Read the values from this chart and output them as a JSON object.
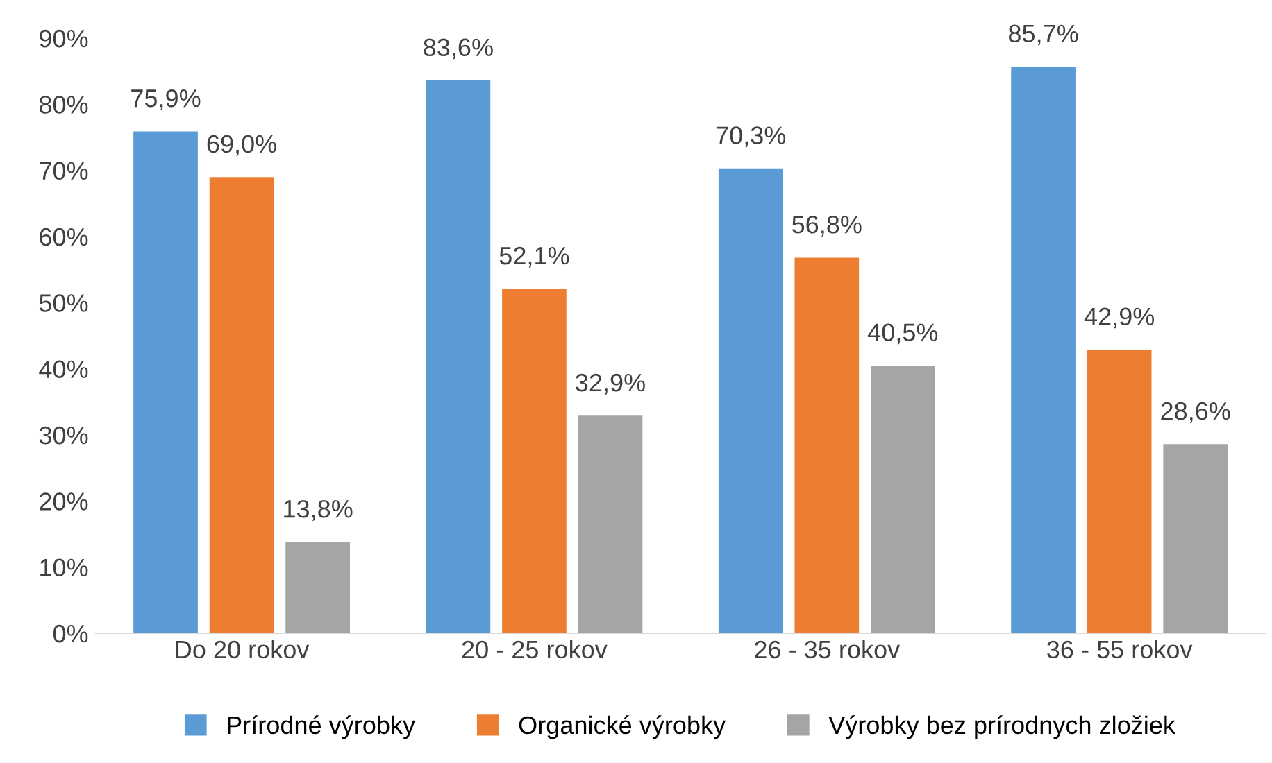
{
  "chart_data": {
    "type": "bar",
    "categories": [
      "Do 20 rokov",
      "20 - 25 rokov",
      "26 - 35 rokov",
      "36 - 55 rokov"
    ],
    "series": [
      {
        "name": "Prírodné výrobky",
        "color": "#5b9bd5",
        "values": [
          75.9,
          83.6,
          70.3,
          85.7
        ],
        "value_labels": [
          "75,9%",
          "83,6%",
          "70,3%",
          "85,7%"
        ]
      },
      {
        "name": "Organické výrobky",
        "color": "#ed7d31",
        "values": [
          69.0,
          52.1,
          56.8,
          42.9
        ],
        "value_labels": [
          "69,0%",
          "52,1%",
          "56,8%",
          "42,9%"
        ]
      },
      {
        "name": "Výrobky bez prírodnych zložiek",
        "color": "#a5a5a5",
        "values": [
          13.8,
          32.9,
          40.5,
          28.6
        ],
        "value_labels": [
          "13,8%",
          "32,9%",
          "40,5%",
          "28,6%"
        ]
      }
    ],
    "ylim": [
      0,
      90
    ],
    "yticks": [
      {
        "value": 0,
        "label": "0%"
      },
      {
        "value": 10,
        "label": "10%"
      },
      {
        "value": 20,
        "label": "20%"
      },
      {
        "value": 30,
        "label": "30%"
      },
      {
        "value": 40,
        "label": "40%"
      },
      {
        "value": 50,
        "label": "50%"
      },
      {
        "value": 60,
        "label": "60%"
      },
      {
        "value": 70,
        "label": "70%"
      },
      {
        "value": 80,
        "label": "80%"
      },
      {
        "value": 90,
        "label": "90%"
      }
    ],
    "grid": false,
    "legend": "bottom"
  }
}
